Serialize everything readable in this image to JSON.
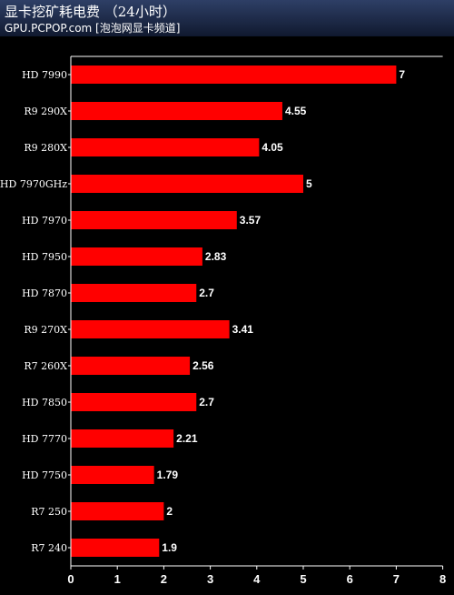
{
  "header": {
    "title": "显卡挖矿耗电费  （24小时）",
    "subtitle": "GPU.PCPOP.com [泡泡网显卡频道]"
  },
  "colors": {
    "background": "#000000",
    "bar": "#ff0000",
    "axis": "#ffffff",
    "label_text": "#ffffff",
    "header_top": "#2e3f66",
    "header_bottom": "#10192f"
  },
  "chart_data": {
    "type": "bar",
    "orientation": "horizontal",
    "categories": [
      "HD 7990",
      "R9 290X",
      "R9 280X",
      "HD 7970GHz",
      "HD 7970",
      "HD 7950",
      "HD 7870",
      "R9 270X",
      "R7 260X",
      "HD 7850",
      "HD 7770",
      "HD 7750",
      "R7 250",
      "R7 240"
    ],
    "values": [
      7,
      4.55,
      4.05,
      5,
      3.57,
      2.83,
      2.7,
      3.41,
      2.56,
      2.7,
      2.21,
      1.79,
      2,
      1.9
    ],
    "value_labels": [
      "7",
      "4.55",
      "4.05",
      "5",
      "3.57",
      "2.83",
      "2.7",
      "3.41",
      "2.56",
      "2.7",
      "2.21",
      "1.79",
      "2",
      "1.9"
    ],
    "xlim": [
      0,
      8
    ],
    "xticks": [
      "0",
      "1",
      "2",
      "3",
      "4",
      "5",
      "6",
      "7",
      "8"
    ],
    "grid": false,
    "legend": "none"
  }
}
